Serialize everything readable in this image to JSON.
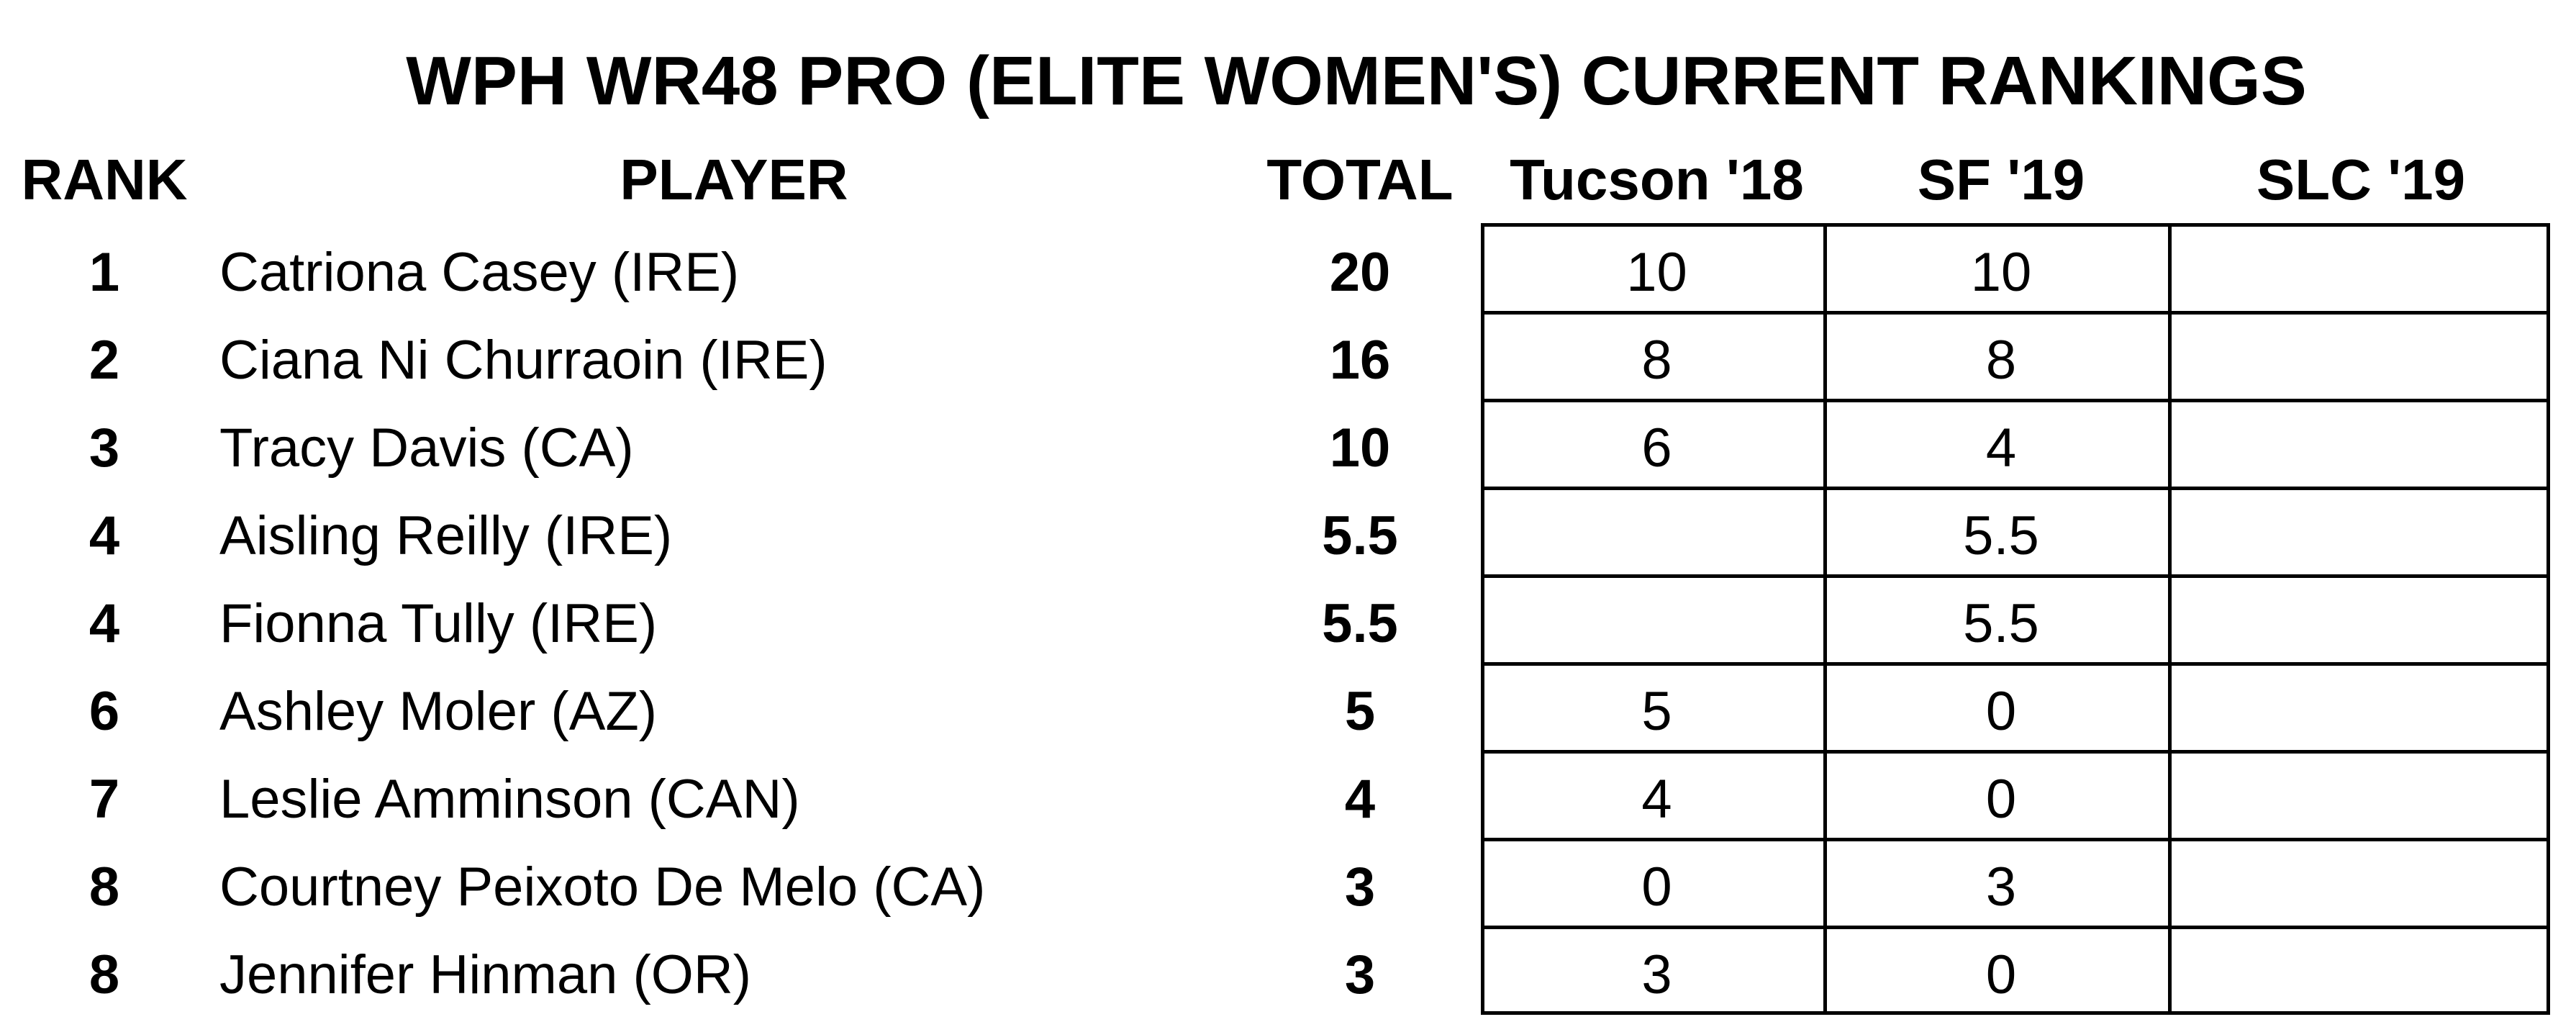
{
  "title": "WPH WR48 PRO (ELITE WOMEN'S) CURRENT RANKINGS",
  "headers": {
    "rank": "RANK",
    "player": "PLAYER",
    "total": "TOTAL",
    "events": [
      "Tucson '18",
      "SF '19",
      "SLC '19"
    ]
  },
  "rows": [
    {
      "rank": "1",
      "player": "Catriona Casey (IRE)",
      "total": "20",
      "scores": [
        "10",
        "10",
        ""
      ]
    },
    {
      "rank": "2",
      "player": "Ciana Ni Churraoin (IRE)",
      "total": "16",
      "scores": [
        "8",
        "8",
        ""
      ]
    },
    {
      "rank": "3",
      "player": "Tracy Davis (CA)",
      "total": "10",
      "scores": [
        "6",
        "4",
        ""
      ]
    },
    {
      "rank": "4",
      "player": "Aisling Reilly (IRE)",
      "total": "5.5",
      "scores": [
        "",
        "5.5",
        ""
      ]
    },
    {
      "rank": "4",
      "player": "Fionna Tully (IRE)",
      "total": "5.5",
      "scores": [
        "",
        "5.5",
        ""
      ]
    },
    {
      "rank": "6",
      "player": "Ashley Moler (AZ)",
      "total": "5",
      "scores": [
        "5",
        "0",
        ""
      ]
    },
    {
      "rank": "7",
      "player": "Leslie Amminson (CAN)",
      "total": "4",
      "scores": [
        "4",
        "0",
        ""
      ]
    },
    {
      "rank": "8",
      "player": "Courtney Peixoto De Melo (CA)",
      "total": "3",
      "scores": [
        "0",
        "3",
        ""
      ]
    },
    {
      "rank": "8",
      "player": "Jennifer Hinman (OR)",
      "total": "3",
      "scores": [
        "3",
        "0",
        ""
      ]
    }
  ]
}
